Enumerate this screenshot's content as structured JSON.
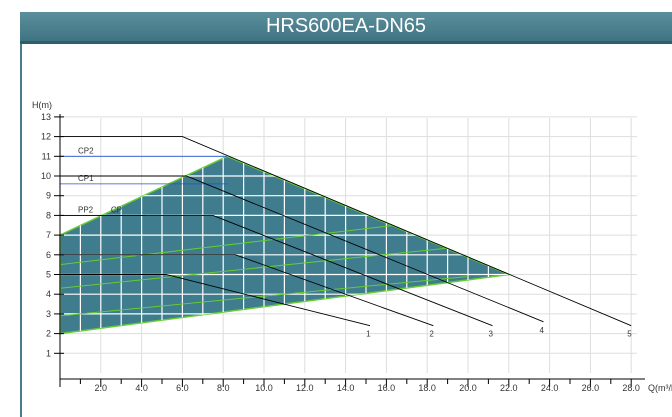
{
  "header": {
    "title": "HRS600EA-DN65"
  },
  "chart_data": {
    "type": "area",
    "title": "HRS600EA-DN65",
    "ylabel": "H(m)",
    "xlabel": "Q(m³/h)",
    "xlim": [
      0,
      28
    ],
    "ylim": [
      0,
      13
    ],
    "xticks": [
      2,
      4,
      6,
      8,
      10,
      12,
      14,
      16,
      18,
      20,
      22,
      24,
      26,
      28
    ],
    "xtick_labels": [
      "2.0",
      "4.0",
      "6.0",
      "8.0",
      "10.0",
      "12.0",
      "14.0",
      "16.0",
      "18.0",
      "20.0",
      "22.0",
      "24.0",
      "26.0",
      "28.0"
    ],
    "yticks": [
      1,
      2,
      3,
      4,
      5,
      6,
      7,
      8,
      9,
      10,
      11,
      12,
      13
    ],
    "ytick_labels": [
      "1",
      "2",
      "3",
      "4",
      "5",
      "6",
      "7",
      "8",
      "9",
      "10",
      "11",
      "12",
      "13"
    ],
    "grid": true,
    "colors": {
      "region": "#3e7c8e",
      "region_grid": "#ffffff",
      "pp_lines": "#66cc33",
      "cp_label": "#2255cc",
      "pp_label": "#44aa22",
      "leader": "#000000",
      "header": "#4a7f8d"
    },
    "operating_region": [
      [
        0,
        2
      ],
      [
        0,
        7
      ],
      [
        8.2,
        11
      ],
      [
        22,
        5
      ]
    ],
    "pp_lines": [
      {
        "x": [
          0,
          20
        ],
        "y": [
          2.9,
          4.9
        ]
      },
      {
        "x": [
          0,
          20.5
        ],
        "y": [
          4.3,
          6.5
        ]
      },
      {
        "x": [
          0,
          20.5
        ],
        "y": [
          5.5,
          8.0
        ]
      }
    ],
    "cp_lines": [
      {
        "label": "CP2",
        "x": [
          0,
          8.2
        ],
        "y": [
          11,
          11
        ]
      },
      {
        "label": "CP1",
        "x": [
          0,
          8.2
        ],
        "y": [
          9.6,
          9.6
        ]
      },
      {
        "label": "PP2",
        "x": [
          0,
          4.2
        ],
        "y": [
          8,
          8
        ]
      },
      {
        "label": "CP",
        "x": [
          2.3,
          4.2
        ],
        "y": [
          8,
          8
        ]
      }
    ],
    "speed_curves": [
      {
        "name": "1",
        "points": [
          [
            0,
            5
          ],
          [
            5.2,
            5
          ],
          [
            15.2,
            2.4
          ]
        ]
      },
      {
        "name": "2",
        "points": [
          [
            0,
            6
          ],
          [
            8.6,
            6
          ],
          [
            18.3,
            2.4
          ]
        ]
      },
      {
        "name": "3",
        "points": [
          [
            0,
            8
          ],
          [
            7.5,
            8
          ],
          [
            21.2,
            2.4
          ]
        ]
      },
      {
        "name": "4",
        "points": [
          [
            0,
            10
          ],
          [
            6.2,
            10
          ],
          [
            23.7,
            2.6
          ]
        ]
      },
      {
        "name": "5",
        "points": [
          [
            0,
            12
          ],
          [
            6.0,
            12
          ],
          [
            28.0,
            2.4
          ]
        ]
      }
    ]
  }
}
